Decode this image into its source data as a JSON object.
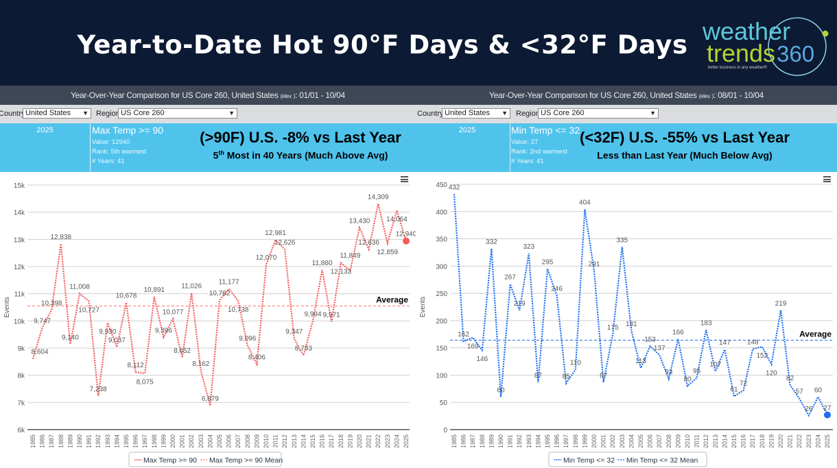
{
  "banner": {
    "title": "Year-to-Date Hot 90°F Days & <32°F Days"
  },
  "logo": {
    "line1": "weather",
    "line2": "trends",
    "num": "360",
    "tagline": "better business in any weather®"
  },
  "panels": [
    {
      "title": "Year-Over-Year Comparison for US Core 260, United States",
      "elev": "(elev. )",
      "range": ": 01/01 - 10/04",
      "country_label": "Country:",
      "country": "United States",
      "region_label": "Region:",
      "region": "US Core 260",
      "year": "2025",
      "metric": "Max Temp >= 90",
      "value": "Value: 12940",
      "rank": "Rank: 5th warmest",
      "years": "# Years: 41",
      "headline": "(>90F) U.S. -8% vs Last Year",
      "sub_pre": "5",
      "sub_sup": "th",
      "sub_post": " Most in 40 Years (Much Above Avg)"
    },
    {
      "title": "Year-Over-Year Comparison for US Core 260, United States",
      "elev": "(elev. )",
      "range": ": 08/01 - 10/04",
      "country_label": "Country:",
      "country": "United States",
      "region_label": "Region:",
      "region": "US Core 260",
      "year": "2025",
      "metric": "Min Temp <= 32",
      "value": "Value: 27",
      "rank": "Rank: 2nd warmest",
      "years": "# Years: 41",
      "headline": "(<32F) U.S. -55% vs Last Year",
      "sub_pre": "Less than Last Year (Much Below Avg)",
      "sub_sup": "",
      "sub_post": ""
    }
  ],
  "chart_data": [
    {
      "type": "line",
      "ylabel": "Events",
      "ylim": [
        6000,
        15000
      ],
      "yticks": [
        6000,
        7000,
        8000,
        9000,
        10000,
        11000,
        12000,
        13000,
        14000,
        15000
      ],
      "ytick_labels": [
        "6k",
        "7k",
        "8k",
        "9k",
        "10k",
        "11k",
        "12k",
        "13k",
        "14k",
        "15k"
      ],
      "x": [
        1985,
        1986,
        1987,
        1988,
        1989,
        1990,
        1991,
        1992,
        1993,
        1994,
        1995,
        1996,
        1997,
        1998,
        1999,
        2000,
        2001,
        2002,
        2003,
        2004,
        2005,
        2006,
        2007,
        2008,
        2009,
        2010,
        2011,
        2012,
        2013,
        2014,
        2015,
        2016,
        2017,
        2018,
        2019,
        2020,
        2021,
        2022,
        2023,
        2024,
        2025
      ],
      "series": [
        {
          "name": "Max Temp >= 90",
          "color": "#f55a5a",
          "values": [
            8604,
            9747,
            10398,
            12838,
            9140,
            11008,
            10727,
            7238,
            9930,
            9037,
            10678,
            8112,
            8075,
            10891,
            9396,
            10077,
            8652,
            11026,
            8162,
            6879,
            10762,
            11177,
            10738,
            9096,
            8406,
            12070,
            12981,
            12626,
            9347,
            8733,
            9994,
            11880,
            9971,
            12133,
            11849,
            13430,
            12636,
            14309,
            12859,
            14064,
            12940
          ]
        }
      ],
      "mean": {
        "name": "Max Temp >= 90 Mean",
        "value": 10550,
        "label": "Average",
        "color": "#f88"
      },
      "grid": true,
      "legend": "bottom"
    },
    {
      "type": "line",
      "ylabel": "Events",
      "ylim": [
        0,
        450
      ],
      "yticks": [
        0,
        50,
        100,
        150,
        200,
        250,
        300,
        350,
        400,
        450
      ],
      "ytick_labels": [
        "0",
        "50",
        "100",
        "150",
        "200",
        "250",
        "300",
        "350",
        "400",
        "450"
      ],
      "x": [
        1985,
        1986,
        1987,
        1988,
        1989,
        1990,
        1991,
        1992,
        1993,
        1994,
        1995,
        1996,
        1997,
        1998,
        1999,
        2000,
        2001,
        2002,
        2003,
        2004,
        2005,
        2006,
        2007,
        2008,
        2009,
        2010,
        2011,
        2012,
        2013,
        2014,
        2015,
        2016,
        2017,
        2018,
        2019,
        2020,
        2021,
        2022,
        2023,
        2024,
        2025
      ],
      "series": [
        {
          "name": "Min Temp <= 32",
          "color": "#1a6ef0",
          "values": [
            432,
            162,
            169,
            146,
            332,
            60,
            267,
            219,
            323,
            87,
            295,
            246,
            85,
            110,
            404,
            291,
            87,
            175,
            335,
            181,
            113,
            153,
            137,
            93,
            166,
            80,
            95,
            183,
            107,
            147,
            61,
            72,
            148,
            152,
            120,
            219,
            82,
            57,
            26,
            60,
            27
          ]
        }
      ],
      "mean": {
        "name": "Min Temp <= 32 Mean",
        "value": 164,
        "label": "Average",
        "color": "#3b82f0"
      },
      "grid": true,
      "legend": "bottom"
    }
  ]
}
